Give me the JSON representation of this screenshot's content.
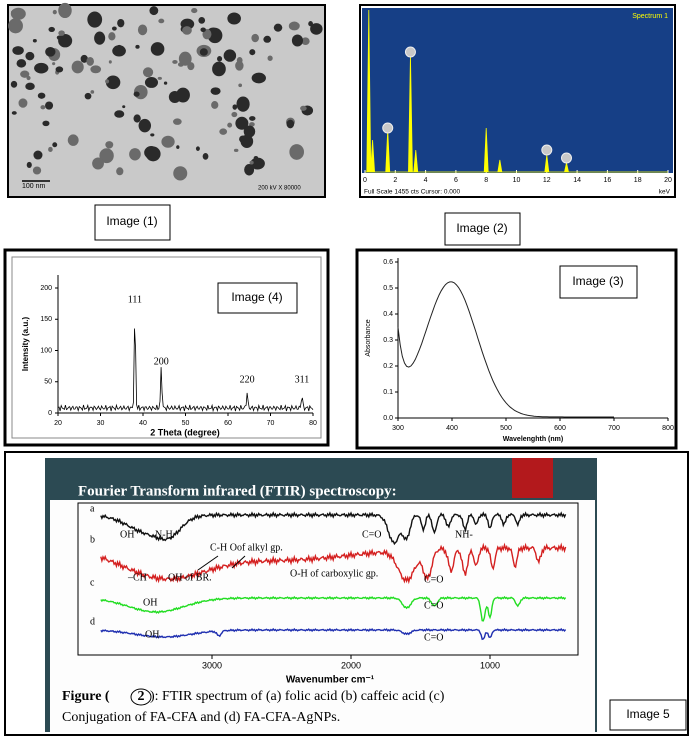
{
  "image1": {
    "label": "Image (1)",
    "scale_text": "100 nm",
    "info_text": "200 kV X 80000"
  },
  "image2": {
    "label": "Image (2)",
    "spectrum_name": "Spectrum 1",
    "xticks": [
      0,
      2,
      4,
      6,
      8,
      10,
      12,
      14,
      16,
      18,
      20
    ],
    "footer": "Full Scale 1455 cts Cursor: 0.000",
    "unit": "keV"
  },
  "image4": {
    "label": "Image (4)",
    "xlabel": "2 Theta (degree)",
    "ylabel": "Intensity (a.u.)",
    "xticks": [
      20,
      30,
      40,
      50,
      60,
      70,
      80
    ],
    "yticks": [
      0,
      50,
      100,
      150,
      200
    ],
    "peaks": [
      "111",
      "200",
      "220",
      "311"
    ]
  },
  "image3": {
    "label": "Image (3)",
    "xlabel": "Wavelenghth (nm)",
    "ylabel": "Absorbance",
    "xticks": [
      300,
      400,
      500,
      600,
      700,
      800
    ],
    "yticks": [
      {
        "value": 0,
        "label": "0.0"
      },
      0.1,
      0.2,
      0.3,
      0.4,
      0.5,
      0.6
    ]
  },
  "image5": {
    "label": "Image 5",
    "title": "Fourier Transform infrared (FTIR) spectroscopy:",
    "trace_labels": [
      "a",
      "b",
      "c",
      "d"
    ],
    "annotations": [
      "OH",
      "N-H",
      "C=O",
      "NH-",
      "C-H Oof alkyl gp.",
      "–CH",
      "OH of BR.",
      "O-H of carboxylic gp.",
      "C=O",
      "OH",
      "C=O",
      "OH",
      "C=O"
    ],
    "xticks": [
      3000,
      2000,
      1000
    ],
    "xlabel": "Wavenumber cm⁻¹",
    "figure_prefix": "Figure (",
    "figure_number": "2",
    "caption_lines": [
      "): FTIR spectrum of (a) folic acid (b) caffeic acid (c)",
      "Conjugation of FA-CFA and (d) FA-CFA-AgNPs."
    ]
  }
}
